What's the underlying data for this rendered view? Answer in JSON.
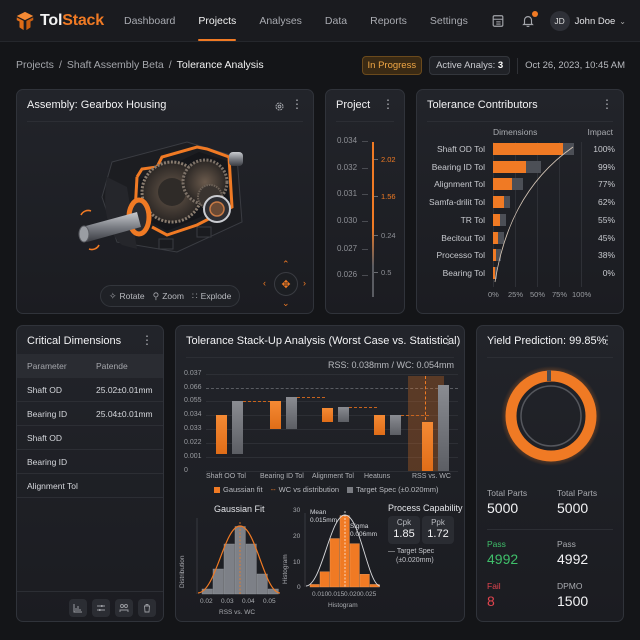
{
  "app": {
    "name_part1": "Tol",
    "name_part2": "Stack"
  },
  "nav": {
    "items": [
      {
        "label": "Dashboard",
        "active": false
      },
      {
        "label": "Projects",
        "active": true
      },
      {
        "label": "Analyses",
        "active": false
      },
      {
        "label": "Data",
        "active": false
      },
      {
        "label": "Reports",
        "active": false
      },
      {
        "label": "Settings",
        "active": false
      }
    ]
  },
  "user": {
    "initials": "JD",
    "name": "John Doe",
    "has_notification": true
  },
  "breadcrumb": {
    "items": [
      "Projects",
      "Shaft Assembly Beta",
      "Tolerance Analysis"
    ],
    "separator": "/"
  },
  "status": {
    "badge": "In Progress",
    "active_label": "Active Analys:",
    "active_count": "3",
    "datetime": "Oct 26, 2023, 10:45 AM"
  },
  "colors": {
    "accent": "#f07a24",
    "pass": "#3fbf6a",
    "fail": "#e0444e",
    "bg": "#141518",
    "panel": "#1f2126"
  },
  "assembly": {
    "title": "Assembly: Gearbox Housing",
    "controls": [
      {
        "icon": "rotate-icon",
        "label": "Rotate"
      },
      {
        "icon": "zoom-icon",
        "label": "Zoom"
      },
      {
        "icon": "explode-icon",
        "label": "Explode"
      }
    ]
  },
  "project": {
    "title": "Project",
    "left_scale": [
      "0.034",
      "0.032",
      "0.031",
      "0.030",
      "0.027",
      "0.026"
    ],
    "right_markers": [
      {
        "value": "2.02",
        "highlight": true
      },
      {
        "value": "1.56",
        "highlight": true
      },
      {
        "value": "0.24",
        "highlight": false
      },
      {
        "value": "0.5",
        "highlight": false
      }
    ]
  },
  "contributors": {
    "title": "Tolerance Contributors",
    "col_dimensions": "Dimensions",
    "col_impact": "Impact",
    "axis": [
      "0%",
      "25%",
      "50%",
      "75%",
      "100%"
    ],
    "rows": [
      {
        "label": "Shaft OD Tol",
        "bar": 79,
        "total": 92,
        "impact": "100%"
      },
      {
        "label": "Bearing ID Tol",
        "bar": 37,
        "total": 54,
        "impact": "99%"
      },
      {
        "label": "Alignment Tol",
        "bar": 22,
        "total": 34,
        "impact": "77%"
      },
      {
        "label": "Samfa-drilit Tol",
        "bar": 12,
        "total": 19,
        "impact": "62%"
      },
      {
        "label": "TR Tol",
        "bar": 8,
        "total": 15,
        "impact": "55%"
      },
      {
        "label": "Becitout Tol",
        "bar": 6,
        "total": 13,
        "impact": "45%"
      },
      {
        "label": "Processo Tol",
        "bar": 3,
        "total": 9,
        "impact": "38%"
      },
      {
        "label": "Bearing Tol",
        "bar": 2,
        "total": 4,
        "impact": "0%"
      }
    ]
  },
  "critical_dimensions": {
    "title": "Critical Dimensions",
    "columns": [
      "Parameter",
      "Patende"
    ],
    "rows": [
      {
        "param": "Shaft OD",
        "value": "25.02±0.01mm"
      },
      {
        "param": "Bearing ID",
        "value": "25.04±0.01mm"
      },
      {
        "param": "Shaft OD",
        "value": ""
      },
      {
        "param": "Bearing ID",
        "value": ""
      },
      {
        "param": "Alignment Tol",
        "value": ""
      }
    ],
    "actions": [
      "chart-icon",
      "sliders-icon",
      "group-icon",
      "trash-icon"
    ]
  },
  "stackup": {
    "title": "Tolerance Stack-Up Analysis (Worst Case vs. Statistical)",
    "summary": "RSS: 0.038mm / WC: 0.054mm",
    "legend": [
      "Gaussian fit",
      "WC vs distribution",
      "Target Spec (±0.020mm)"
    ],
    "gaussian_title": "Gaussian Fit",
    "gaussian_ylabel": "Distribution",
    "gaussian_xlabel": "RSS vs. WC",
    "gaussian_xticks": [
      "0.02",
      "0.03",
      "0.04",
      "0.05"
    ],
    "hist_ylabel": "Histogram",
    "hist_xlabel": "Histogram",
    "hist_yticks": [
      "30",
      "20",
      "10",
      "0"
    ],
    "hist_xticks": [
      "0.010",
      "0.015",
      "0.020",
      "0.025"
    ],
    "mean_label": "Mean",
    "mean_value": "0.015mm",
    "sigma_label": "Sigma",
    "sigma_value": "0.006mm",
    "capability_title": "Process Capability",
    "cpk_label": "Cpk",
    "cpk_value": "1.85",
    "ppk_label": "Ppk",
    "ppk_value": "1.72",
    "target_line1": "Target Spec",
    "target_line2": "(±0.020mm)"
  },
  "chart_data": [
    {
      "type": "bar",
      "title": "Tolerance Stack-Up Analysis (Worst Case vs. Statistical)",
      "subtitle": "RSS: 0.038mm / WC: 0.054mm",
      "categories": [
        "Shaft OO Tol",
        "Bearing ID Tol",
        "Alignment Tol",
        "Heatuns",
        "RSS vs. WC"
      ],
      "yticks": [
        "0",
        "0.001",
        "0.022",
        "0.033",
        "0.034",
        "0.055",
        "0.066",
        "0.037"
      ],
      "series": [
        {
          "name": "Gaussian fit",
          "ranges": [
            [
              1.2,
              4.0
            ],
            [
              3.0,
              5.0
            ],
            [
              3.5,
              4.5
            ],
            [
              2.6,
              4.0
            ],
            [
              0,
              3.5
            ]
          ]
        },
        {
          "name": "Target Spec (±0.020mm)",
          "ranges": [
            [
              1.2,
              5.0
            ],
            [
              3.0,
              5.3
            ],
            [
              3.5,
              4.6
            ],
            [
              2.6,
              4.0
            ],
            [
              0,
              6.2
            ]
          ]
        }
      ],
      "reference_line": {
        "name": "Target",
        "y_index": 6
      },
      "legend": [
        "Gaussian fit",
        "WC vs distribution",
        "Target Spec (±0.020mm)"
      ]
    },
    {
      "type": "bar",
      "title": "Gaussian Fit",
      "xlabel": "RSS vs. WC",
      "ylabel": "Distribution",
      "x": [
        0.02,
        0.025,
        0.03,
        0.035,
        0.04,
        0.045,
        0.05
      ],
      "values": [
        2,
        10,
        20,
        27,
        20,
        8,
        2
      ]
    },
    {
      "type": "bar",
      "title": "Histogram",
      "xlabel": "Histogram",
      "ylabel": "Histogram",
      "ylim": [
        0,
        30
      ],
      "x": [
        0.0075,
        0.01,
        0.0125,
        0.015,
        0.0175,
        0.02,
        0.0225
      ],
      "values": [
        1,
        6,
        19,
        28,
        17,
        5,
        1
      ],
      "annotations": [
        "Mean 0.015mm",
        "Sigma 0.006mm"
      ]
    }
  ],
  "yield": {
    "title": "Yield Prediction: 99.85%",
    "percent": 99.85,
    "stats": [
      {
        "label": "Total Parts",
        "value": "5000"
      },
      {
        "label": "Total Parts",
        "value": "5000"
      },
      {
        "label": "Pass",
        "value": "4992"
      },
      {
        "label": "Pass",
        "value": "4992"
      },
      {
        "label": "Fail",
        "value": "8"
      },
      {
        "label": "DPMO",
        "value": "1500"
      }
    ]
  }
}
